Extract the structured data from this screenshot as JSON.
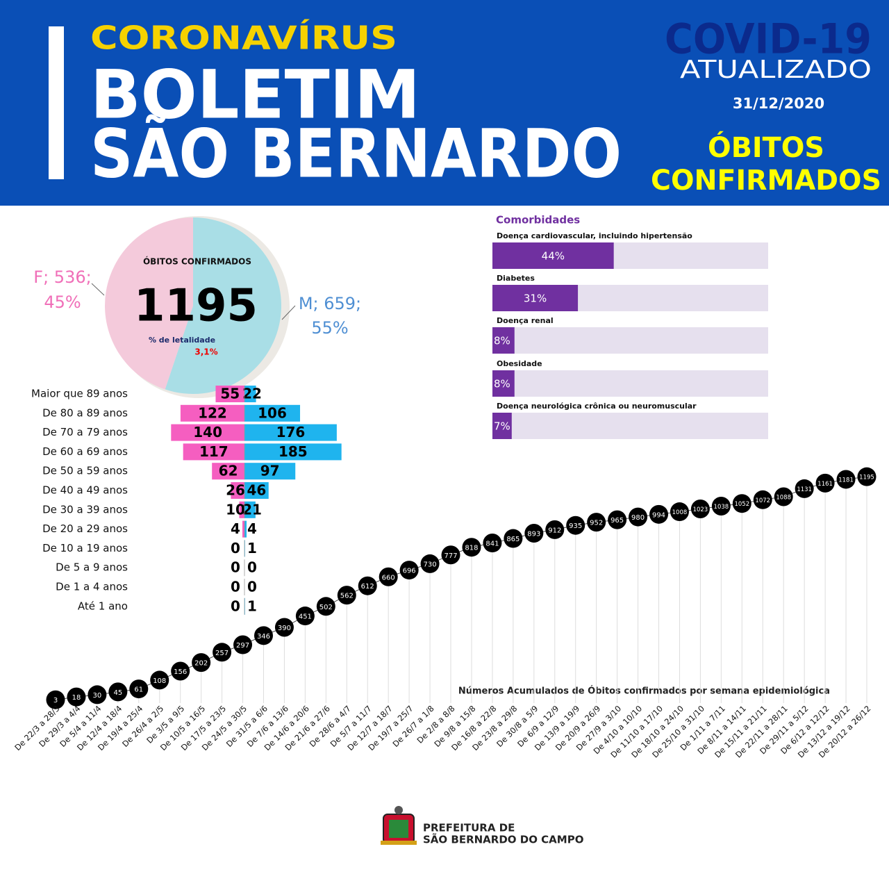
{
  "header": {
    "kicker": "CORONAVÍRUS",
    "title_line1": "BOLETIM",
    "title_line2": "SÃO BERNARDO",
    "badge": "COVID-19",
    "badge_sub": "ATUALIZADO",
    "date": "31/12/2020",
    "topic_line1": "ÓBITOS",
    "topic_line2": "CONFIRMADOS"
  },
  "chart_data": [
    {
      "type": "pie",
      "title": "ÓBITOS CONFIRMADOS",
      "total": "1195",
      "rate_label": "% de letalidade",
      "rate": "3,1%",
      "categories": [
        "F",
        "M"
      ],
      "values": [
        536,
        659
      ],
      "value_labels": [
        "F; 536;",
        "M; 659;"
      ],
      "percents": [
        45,
        55
      ],
      "percent_labels": [
        "45%",
        "55%"
      ],
      "colors": [
        "#f4cadb",
        "#a9dee6"
      ],
      "label_colors": [
        "#f06fb8",
        "#4f8fd3"
      ]
    },
    {
      "type": "pyramid",
      "categories": [
        "Maior que 89 anos",
        "De 80 a 89 anos",
        "De 70 a 79 anos",
        "De 60 a 69 anos",
        "De 50 a 59 anos",
        "De 40 a 49 anos",
        "De 30 a 39 anos",
        "De 20 a 29 anos",
        "De 10 a 19 anos",
        "De 5 a 9 anos",
        "De 1 a 4 anos",
        "Até 1 ano"
      ],
      "series": [
        {
          "color": "#f55ec0",
          "values": [
            55,
            122,
            140,
            117,
            62,
            26,
            10,
            4,
            0,
            0,
            0,
            0
          ]
        },
        {
          "color": "#1fb4ee",
          "values": [
            22,
            106,
            176,
            185,
            97,
            46,
            21,
            4,
            1,
            0,
            0,
            1
          ]
        }
      ]
    },
    {
      "type": "bar",
      "title": "Comorbidades",
      "categories": [
        "Doença cardiovascular, incluindo hipertensão",
        "Diabetes",
        "Doença renal",
        "Obesidade",
        "Doença neurológica crônica ou neuromuscular"
      ],
      "values": [
        44,
        31,
        8,
        8,
        7
      ],
      "value_labels": [
        "44%",
        "31%",
        "8%",
        "8%",
        "7%"
      ],
      "xlim": [
        0,
        100
      ],
      "color": "#7030a0",
      "track_color": "#e6e0ee"
    },
    {
      "type": "line",
      "title": "Números Acumulados de Óbitos confirmados por semana epidemiológica",
      "categories": [
        "De 22/3 a 28/3",
        "De 29/3 a 4/4",
        "De 5/4 a 11/4",
        "De 12/4 a 18/4",
        "De 19/4 a 25/4",
        "De 26/4 a 2/5",
        "De 3/5 a 9/5",
        "De 10/5 a 16/5",
        "De 17/5 a 23/5",
        "De 24/5 a 30/5",
        "De 31/5 a 6/6",
        "De 7/6 a 13/6",
        "De 14/6 a 20/6",
        "De 21/6 a 27/6",
        "De 28/6 a 4/7",
        "De 5/7 a 11/7",
        "De 12/7 a 18/7",
        "De 19/7 a 25/7",
        "De 26/7 a 1/8",
        "De 2/8 a 8/8",
        "De 9/8 a 15/8",
        "De 16/8 a 22/8",
        "De 23/8 a 29/8",
        "De 30/8 a 5/9",
        "De 6/9 a 12/9",
        "De 13/9 a 19/9",
        "De 20/9 a 26/9",
        "De 27/9 a 3/10",
        "De 4/10 a 10/10",
        "De 11/10 a 17/10",
        "De 18/10 a 24/10",
        "De 25/10 a 31/10",
        "De 1/11 a 7/11",
        "De 8/11 a 14/11",
        "De 15/11 a 21/11",
        "De 22/11 a 28/11",
        "De 29/11 a 5/12",
        "De 6/12 a 12/12",
        "De 13/12 a 19/12",
        "De 20/12 a 26/12"
      ],
      "values": [
        3,
        18,
        30,
        45,
        61,
        108,
        156,
        202,
        257,
        297,
        346,
        390,
        451,
        502,
        562,
        612,
        660,
        696,
        730,
        777,
        818,
        841,
        865,
        893,
        912,
        935,
        952,
        965,
        980,
        994,
        1008,
        1023,
        1038,
        1052,
        1072,
        1088,
        1131,
        1161,
        1181,
        1195
      ],
      "ylim": [
        0,
        1200
      ],
      "color": "#000000"
    }
  ],
  "footer": {
    "line1": "PREFEITURA DE",
    "line2": "SÃO BERNARDO DO CAMPO"
  }
}
